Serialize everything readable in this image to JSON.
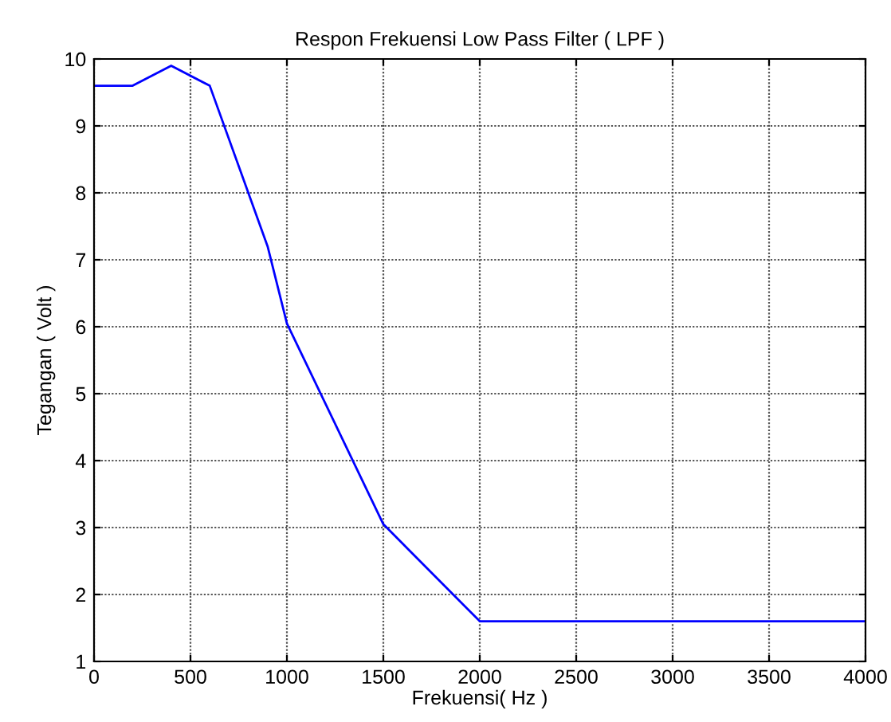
{
  "chart_data": {
    "type": "line",
    "title": "Respon Frekuensi Low Pass Filter ( LPF )",
    "xlabel": "Frekuensi( Hz )",
    "ylabel": "Tegangan ( Volt )",
    "x": [
      0,
      200,
      400,
      600,
      900,
      1000,
      1500,
      2000,
      4000
    ],
    "series": [
      {
        "color": "#0000ff",
        "values": [
          9.6,
          9.6,
          9.9,
          9.6,
          7.2,
          6.05,
          3.05,
          1.6,
          1.6
        ]
      }
    ],
    "xlim": [
      0,
      4000
    ],
    "xticks": [
      0,
      500,
      1000,
      1500,
      2000,
      2500,
      3000,
      3500,
      4000
    ],
    "ylim": [
      1,
      10
    ],
    "yticks": [
      1,
      2,
      3,
      4,
      5,
      6,
      7,
      8,
      9,
      10
    ],
    "grid": true,
    "legend": false,
    "marker": "none",
    "line_style": "solid"
  }
}
